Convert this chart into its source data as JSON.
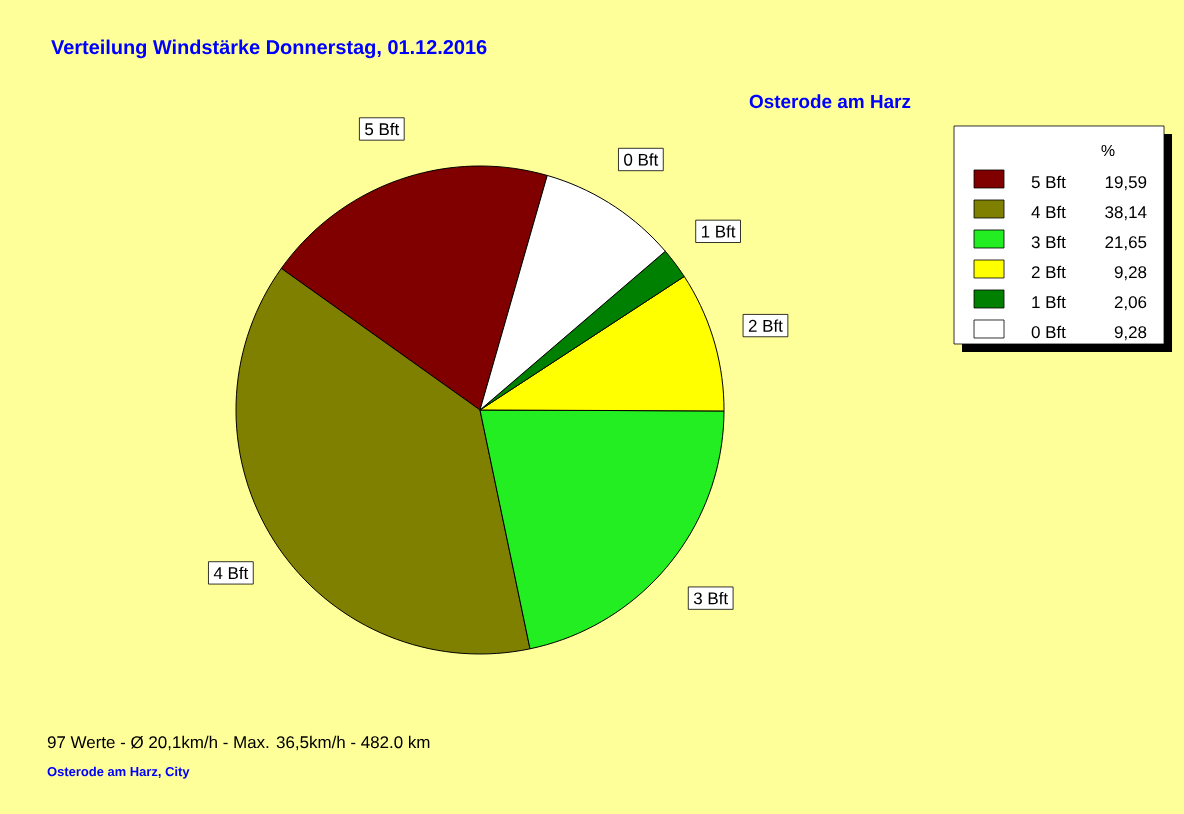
{
  "chart_data": {
    "type": "pie",
    "title": "Verteilung Windstärke  Donnerstag, 01.12.2016",
    "subtitle": "Osterode am Harz",
    "categories": [
      "5 Bft",
      "4 Bft",
      "3 Bft",
      "2 Bft",
      "1 Bft",
      "0 Bft"
    ],
    "values": [
      19.59,
      38.14,
      21.65,
      9.28,
      2.06,
      9.28
    ],
    "value_labels": [
      "19,59",
      "38,14",
      "21,65",
      "9,28",
      "2,06",
      "9,28"
    ],
    "colors": [
      "#800000",
      "#808000",
      "#22EE22",
      "#FFFF00",
      "#008000",
      "#FFFFFF"
    ],
    "legend_title": "%",
    "legend": "right",
    "annotations": [
      "97 Werte   -   Ø 20,1km/h  -  Max. 36,5km/h   -   482.0 km",
      "Osterode am Harz, City"
    ]
  }
}
